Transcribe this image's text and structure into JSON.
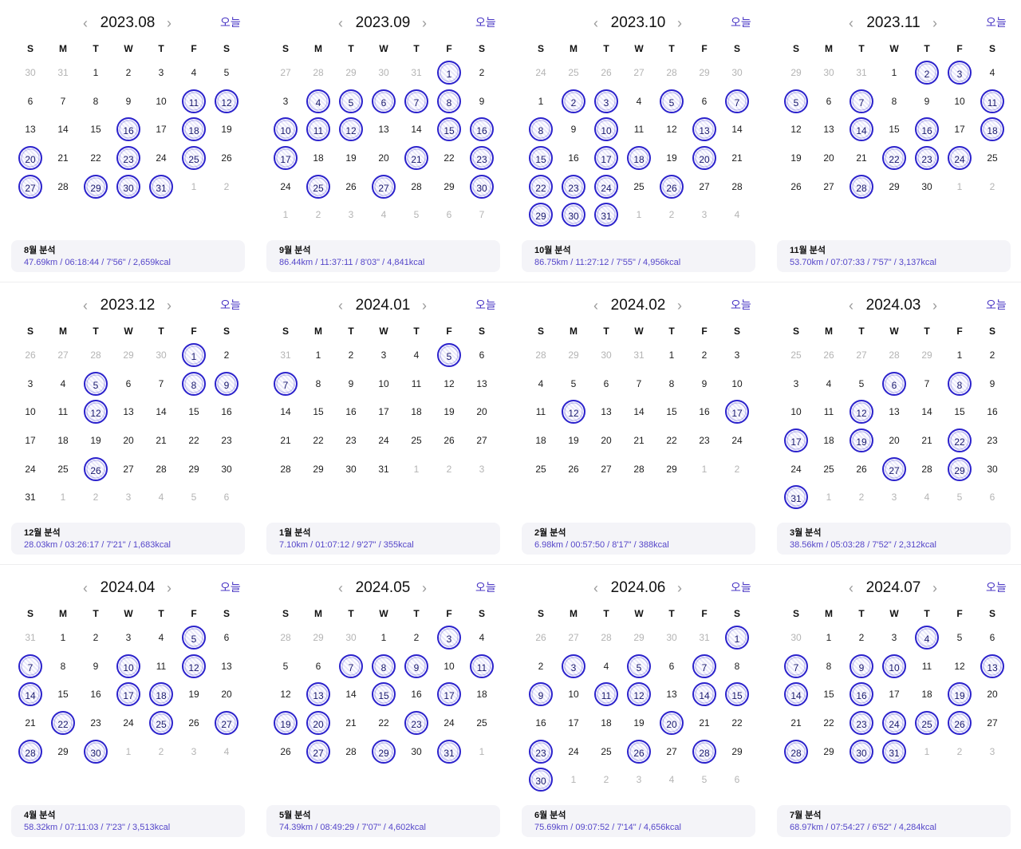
{
  "weekday_labels": [
    "S",
    "M",
    "T",
    "W",
    "T",
    "F",
    "S"
  ],
  "today_label": "오늘",
  "nav": {
    "prev_icon": "chevron-left-icon",
    "next_icon": "chevron-right-icon"
  },
  "colors": {
    "accent": "#4a37c4",
    "stamp": "#2b22cc",
    "stats": "#5546c9",
    "muted": "#b4b4b4"
  },
  "months": [
    {
      "title": "2023.08",
      "lead": [
        30,
        31
      ],
      "days": 31,
      "trail": [
        1,
        2
      ],
      "stamped": [
        11,
        12,
        16,
        18,
        20,
        23,
        25,
        27,
        29,
        30,
        31
      ],
      "summary_title": "8월 분석",
      "summary_stats": "47.69km / 06:18:44 / 7'56\" / 2,659kcal"
    },
    {
      "title": "2023.09",
      "lead": [
        27,
        28,
        29,
        30,
        31
      ],
      "days": 30,
      "trail": [
        1,
        2,
        3,
        4,
        5,
        6,
        7
      ],
      "stamped": [
        1,
        4,
        5,
        6,
        7,
        8,
        10,
        11,
        12,
        15,
        16,
        17,
        21,
        23,
        25,
        27,
        30
      ],
      "summary_title": "9월 분석",
      "summary_stats": "86.44km / 11:37:11 / 8'03\" / 4,841kcal"
    },
    {
      "title": "2023.10",
      "lead": [
        24,
        25,
        26,
        27,
        28,
        29,
        30
      ],
      "days": 31,
      "trail": [
        1,
        2,
        3,
        4
      ],
      "stamped": [
        2,
        3,
        5,
        7,
        8,
        10,
        13,
        15,
        17,
        18,
        20,
        22,
        23,
        24,
        26,
        29,
        30,
        31
      ],
      "summary_title": "10월 분석",
      "summary_stats": "86.75km / 11:27:12 / 7'55\" / 4,956kcal"
    },
    {
      "title": "2023.11",
      "lead": [
        29,
        30,
        31
      ],
      "days": 30,
      "trail": [
        1,
        2
      ],
      "stamped": [
        2,
        3,
        5,
        7,
        11,
        14,
        16,
        18,
        22,
        23,
        24,
        28
      ],
      "summary_title": "11월 분석",
      "summary_stats": "53.70km / 07:07:33 / 7'57\" / 3,137kcal"
    },
    {
      "title": "2023.12",
      "lead": [
        26,
        27,
        28,
        29,
        30
      ],
      "days": 31,
      "trail": [
        1,
        2,
        3,
        4,
        5,
        6
      ],
      "stamped": [
        1,
        5,
        8,
        9,
        12,
        26
      ],
      "summary_title": "12월 분석",
      "summary_stats": "28.03km / 03:26:17 / 7'21\" / 1,683kcal"
    },
    {
      "title": "2024.01",
      "lead": [
        31
      ],
      "days": 31,
      "trail": [
        1,
        2,
        3
      ],
      "stamped": [
        5,
        7
      ],
      "summary_title": "1월 분석",
      "summary_stats": "7.10km / 01:07:12 / 9'27\" / 355kcal"
    },
    {
      "title": "2024.02",
      "lead": [
        28,
        29,
        30,
        31
      ],
      "days": 29,
      "trail": [
        1,
        2
      ],
      "stamped": [
        12,
        17
      ],
      "summary_title": "2월 분석",
      "summary_stats": "6.98km / 00:57:50 / 8'17\" / 388kcal"
    },
    {
      "title": "2024.03",
      "lead": [
        25,
        26,
        27,
        28,
        29
      ],
      "days": 31,
      "trail": [
        1,
        2,
        3,
        4,
        5,
        6
      ],
      "stamped": [
        6,
        8,
        12,
        17,
        19,
        22,
        27,
        29,
        31
      ],
      "summary_title": "3월 분석",
      "summary_stats": "38.56km / 05:03:28 / 7'52\" / 2,312kcal"
    },
    {
      "title": "2024.04",
      "lead": [
        31
      ],
      "days": 30,
      "trail": [
        1,
        2,
        3,
        4
      ],
      "stamped": [
        5,
        7,
        10,
        12,
        14,
        17,
        18,
        22,
        25,
        27,
        28,
        30
      ],
      "summary_title": "4월 분석",
      "summary_stats": "58.32km / 07:11:03 / 7'23\" / 3,513kcal"
    },
    {
      "title": "2024.05",
      "lead": [
        28,
        29,
        30
      ],
      "days": 31,
      "trail": [
        1
      ],
      "stamped": [
        3,
        7,
        8,
        9,
        11,
        13,
        15,
        17,
        19,
        20,
        23,
        27,
        29,
        31
      ],
      "summary_title": "5월 분석",
      "summary_stats": "74.39km / 08:49:29 / 7'07\" / 4,602kcal"
    },
    {
      "title": "2024.06",
      "lead": [
        26,
        27,
        28,
        29,
        30,
        31
      ],
      "days": 30,
      "trail": [
        1,
        2,
        3,
        4,
        5,
        6
      ],
      "stamped": [
        1,
        3,
        5,
        7,
        9,
        11,
        12,
        14,
        15,
        20,
        23,
        26,
        28,
        30
      ],
      "summary_title": "6월 분석",
      "summary_stats": "75.69km / 09:07:52 / 7'14\" / 4,656kcal"
    },
    {
      "title": "2024.07",
      "lead": [
        30
      ],
      "days": 31,
      "trail": [
        1,
        2,
        3
      ],
      "stamped": [
        4,
        7,
        9,
        10,
        13,
        14,
        16,
        19,
        23,
        24,
        25,
        26,
        28,
        30,
        31
      ],
      "summary_title": "7월 분석",
      "summary_stats": "68.97km / 07:54:27 / 6'52\" / 4,284kcal"
    }
  ]
}
